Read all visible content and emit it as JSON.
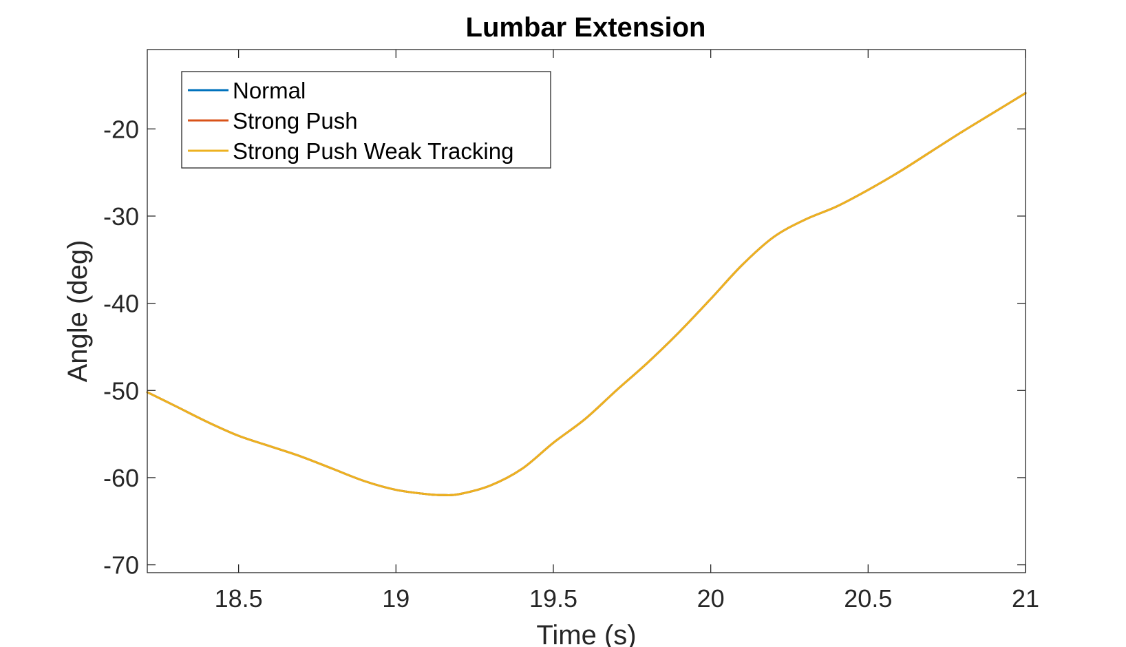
{
  "chart_data": {
    "type": "line",
    "title": "Lumbar Extension",
    "xlabel": "Time (s)",
    "ylabel": "Angle (deg)",
    "xlim": [
      18.21,
      21
    ],
    "ylim": [
      -70.9,
      -10.9
    ],
    "xticks": [
      18.5,
      19,
      19.5,
      20,
      20.5,
      21
    ],
    "xtick_labels": [
      "18.5",
      "19",
      "19.5",
      "20",
      "20.5",
      "21"
    ],
    "yticks": [
      -70,
      -60,
      -50,
      -40,
      -30,
      -20
    ],
    "ytick_labels": [
      "-70",
      "-60",
      "-50",
      "-40",
      "-30",
      "-20"
    ],
    "grid": false,
    "legend_position": "top-left",
    "series": [
      {
        "name": "Normal",
        "color": "#0072BD",
        "x": [
          18.21,
          18.3,
          18.4,
          18.5,
          18.6,
          18.7,
          18.8,
          18.9,
          19.0,
          19.1,
          19.15,
          19.2,
          19.3,
          19.4,
          19.5,
          19.6,
          19.7,
          19.8,
          19.9,
          20.0,
          20.1,
          20.2,
          20.3,
          20.4,
          20.5,
          20.6,
          20.7,
          20.8,
          20.9,
          21.0
        ],
        "y": [
          -50.2,
          -51.8,
          -53.6,
          -55.2,
          -56.4,
          -57.6,
          -59.0,
          -60.4,
          -61.4,
          -61.9,
          -62.0,
          -61.9,
          -60.9,
          -59.0,
          -56.0,
          -53.3,
          -50.0,
          -46.8,
          -43.3,
          -39.5,
          -35.6,
          -32.4,
          -30.4,
          -28.9,
          -27.0,
          -24.9,
          -22.6,
          -20.3,
          -18.1,
          -15.9
        ]
      },
      {
        "name": "Strong Push",
        "color": "#D95319",
        "x": [
          18.21,
          18.3,
          18.4,
          18.5,
          18.6,
          18.7,
          18.8,
          18.9,
          19.0,
          19.1,
          19.15,
          19.2,
          19.3,
          19.4,
          19.5,
          19.6,
          19.7,
          19.8,
          19.9,
          20.0,
          20.1,
          20.2,
          20.3,
          20.4,
          20.5,
          20.6,
          20.7,
          20.8,
          20.9,
          21.0
        ],
        "y": [
          -50.2,
          -51.8,
          -53.6,
          -55.2,
          -56.4,
          -57.6,
          -59.0,
          -60.4,
          -61.4,
          -61.9,
          -62.0,
          -61.9,
          -60.9,
          -59.0,
          -56.0,
          -53.3,
          -50.0,
          -46.8,
          -43.3,
          -39.5,
          -35.6,
          -32.4,
          -30.4,
          -28.9,
          -27.0,
          -24.9,
          -22.6,
          -20.3,
          -18.1,
          -15.9
        ]
      },
      {
        "name": "Strong Push Weak Tracking",
        "color": "#EDB120",
        "x": [
          18.21,
          18.3,
          18.4,
          18.5,
          18.6,
          18.7,
          18.8,
          18.9,
          19.0,
          19.1,
          19.15,
          19.2,
          19.3,
          19.4,
          19.5,
          19.6,
          19.7,
          19.8,
          19.9,
          20.0,
          20.1,
          20.2,
          20.3,
          20.4,
          20.5,
          20.6,
          20.7,
          20.8,
          20.9,
          21.0
        ],
        "y": [
          -50.2,
          -51.8,
          -53.6,
          -55.2,
          -56.4,
          -57.6,
          -59.0,
          -60.4,
          -61.4,
          -61.9,
          -62.0,
          -61.9,
          -60.9,
          -59.0,
          -56.0,
          -53.3,
          -50.0,
          -46.8,
          -43.3,
          -39.5,
          -35.6,
          -32.4,
          -30.4,
          -28.9,
          -27.0,
          -24.9,
          -22.6,
          -20.3,
          -18.1,
          -15.9
        ]
      }
    ]
  }
}
